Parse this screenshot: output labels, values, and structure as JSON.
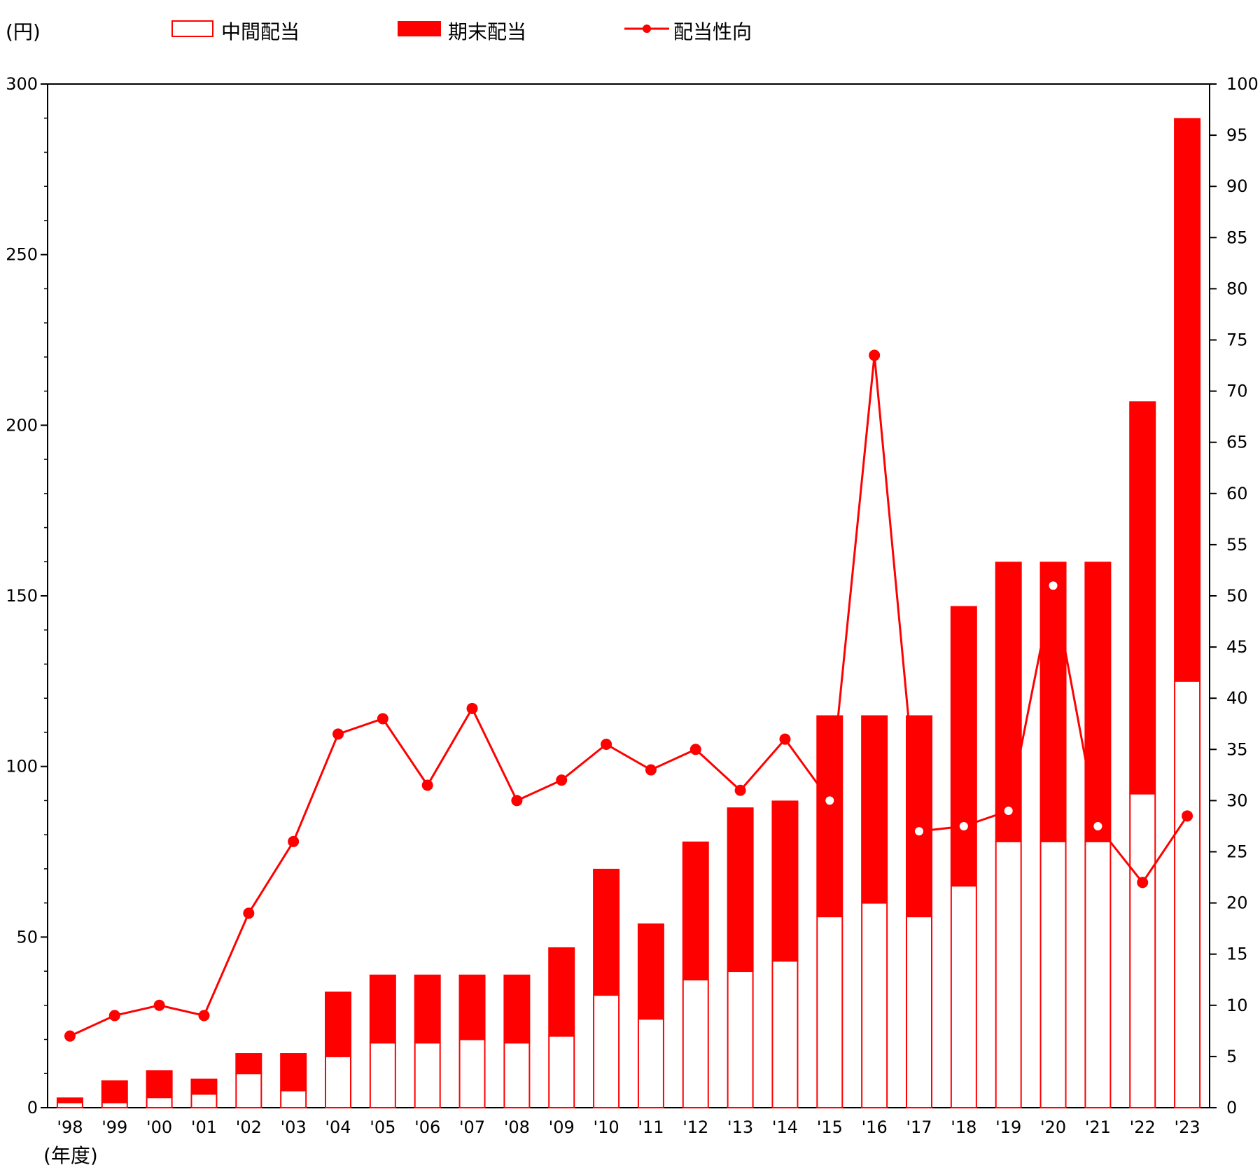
{
  "chart_data": {
    "type": "bar",
    "stacked": true,
    "y_unit_label": "(円)",
    "x_unit_label": "(年度)",
    "categories": [
      "'98",
      "'99",
      "'00",
      "'01",
      "'02",
      "'03",
      "'04",
      "'05",
      "'06",
      "'07",
      "'08",
      "'09",
      "'10",
      "'11",
      "'12",
      "'13",
      "'14",
      "'15",
      "'16",
      "'17",
      "'18",
      "'19",
      "'20",
      "'21",
      "'22",
      "'23"
    ],
    "series": [
      {
        "name": "中間配当",
        "style": "outline",
        "color": "#ff0000",
        "axis": "left",
        "values": [
          1.5,
          1.5,
          3,
          4,
          10,
          5,
          15,
          19,
          19,
          20,
          19,
          21,
          33,
          26,
          37.5,
          40,
          43,
          56,
          60,
          56,
          65,
          78,
          78,
          78,
          92,
          125
        ]
      },
      {
        "name": "期末配当",
        "style": "filled",
        "color": "#ff0000",
        "axis": "left",
        "values": [
          1.5,
          6.5,
          8,
          4.5,
          6,
          11,
          19,
          20,
          20,
          19,
          20,
          26,
          37,
          28,
          40.5,
          48,
          47,
          59,
          55,
          59,
          82,
          82,
          82,
          82,
          115,
          165
        ]
      },
      {
        "name": "配当性向",
        "type": "line",
        "color": "#ff0000",
        "axis": "right",
        "values": [
          7,
          9,
          10,
          9,
          19,
          26,
          36.5,
          38,
          31.5,
          39,
          30,
          32,
          35.5,
          33,
          35,
          31,
          36,
          30,
          73.5,
          27,
          27.5,
          29,
          51,
          27.5,
          22,
          28.5
        ],
        "hollow_markers": [
          17,
          19,
          20,
          21,
          22,
          23
        ]
      }
    ],
    "y_left": {
      "min": 0,
      "max": 300,
      "ticks": [
        0,
        50,
        100,
        150,
        200,
        250,
        300
      ],
      "minor_step": 10
    },
    "y_right": {
      "min": 0,
      "max": 100,
      "ticks": [
        0,
        5,
        10,
        15,
        20,
        25,
        30,
        35,
        40,
        45,
        50,
        55,
        60,
        65,
        70,
        75,
        80,
        85,
        90,
        95,
        100
      ]
    },
    "grid": false,
    "legend_position": "top"
  }
}
